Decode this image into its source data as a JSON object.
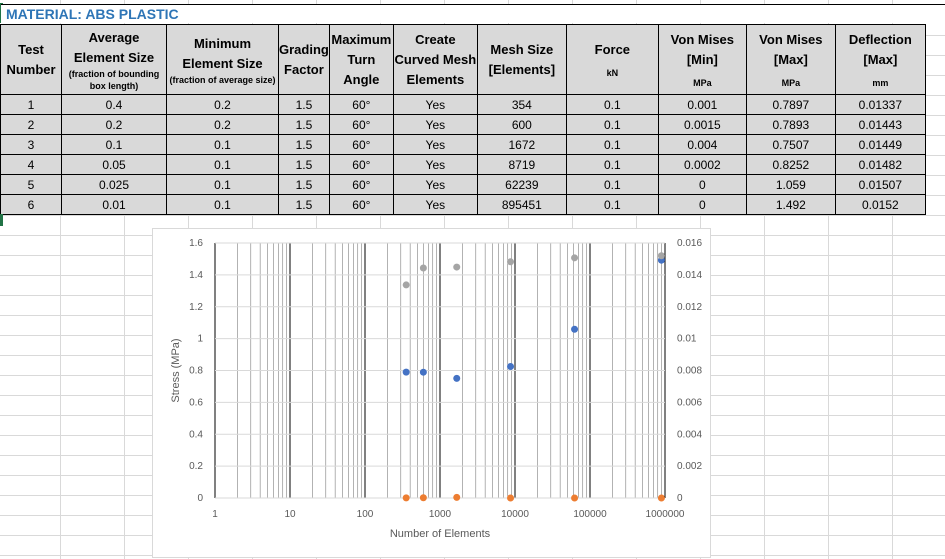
{
  "material_title": "MATERIAL: ABS PLASTIC",
  "table": {
    "headers": [
      {
        "main": "Test Number",
        "sub": ""
      },
      {
        "main": "Average Element Size",
        "sub": "(fraction of bounding box length)"
      },
      {
        "main": "Minimum Element Size",
        "sub": "(fraction of average size)"
      },
      {
        "main": "Grading Factor",
        "sub": ""
      },
      {
        "main": "Maximum Turn Angle",
        "sub": ""
      },
      {
        "main": "Create Curved Mesh Elements",
        "sub": ""
      },
      {
        "main": "Mesh Size [Elements]",
        "sub": ""
      },
      {
        "main": "Force",
        "unit": "kN"
      },
      {
        "main": "Von Mises [Min]",
        "unit": "MPa"
      },
      {
        "main": "Von Mises [Max]",
        "unit": "MPa"
      },
      {
        "main": "Deflection [Max]",
        "unit": "mm"
      }
    ],
    "rows": [
      [
        "1",
        "0.4",
        "0.2",
        "1.5",
        "60°",
        "Yes",
        "354",
        "0.1",
        "0.001",
        "0.7897",
        "0.01337"
      ],
      [
        "2",
        "0.2",
        "0.2",
        "1.5",
        "60°",
        "Yes",
        "600",
        "0.1",
        "0.0015",
        "0.7893",
        "0.01443"
      ],
      [
        "3",
        "0.1",
        "0.1",
        "1.5",
        "60°",
        "Yes",
        "1672",
        "0.1",
        "0.004",
        "0.7507",
        "0.01449"
      ],
      [
        "4",
        "0.05",
        "0.1",
        "1.5",
        "60°",
        "Yes",
        "8719",
        "0.1",
        "0.0002",
        "0.8252",
        "0.01482"
      ],
      [
        "5",
        "0.025",
        "0.1",
        "1.5",
        "60°",
        "Yes",
        "62239",
        "0.1",
        "0",
        "1.059",
        "0.01507"
      ],
      [
        "6",
        "0.01",
        "0.1",
        "1.5",
        "60°",
        "Yes",
        "895451",
        "0.1",
        "0",
        "1.492",
        "0.0152"
      ]
    ]
  },
  "chart_data": {
    "type": "scatter",
    "xlabel": "Number of Elements",
    "ylabel": "Stress (MPa)",
    "x_scale": "log",
    "xlim": [
      1,
      1000000
    ],
    "ylim": [
      0,
      1.6
    ],
    "y2lim": [
      0,
      0.016
    ],
    "x_ticks": [
      "1",
      "10",
      "100",
      "1000",
      "10000",
      "100000",
      "1000000"
    ],
    "y_ticks": [
      "0",
      "0.2",
      "0.4",
      "0.6",
      "0.8",
      "1",
      "1.2",
      "1.4",
      "1.6"
    ],
    "y2_ticks": [
      "0",
      "0.002",
      "0.004",
      "0.006",
      "0.008",
      "0.01",
      "0.012",
      "0.014",
      "0.016"
    ],
    "grid": true,
    "series": [
      {
        "color": "#4472c4",
        "axis": "left",
        "x": [
          354,
          600,
          1672,
          8719,
          62239,
          895451
        ],
        "y": [
          0.7897,
          0.7893,
          0.7507,
          0.8252,
          1.059,
          1.492
        ]
      },
      {
        "color": "#ed7d31",
        "axis": "left",
        "x": [
          354,
          600,
          1672,
          8719,
          62239,
          895451
        ],
        "y": [
          0.001,
          0.0015,
          0.004,
          0.0002,
          0,
          0
        ]
      },
      {
        "color": "#a5a5a5",
        "axis": "right",
        "x": [
          354,
          600,
          1672,
          8719,
          62239,
          895451
        ],
        "y": [
          0.01337,
          0.01443,
          0.01449,
          0.01482,
          0.01507,
          0.0152
        ]
      }
    ]
  }
}
